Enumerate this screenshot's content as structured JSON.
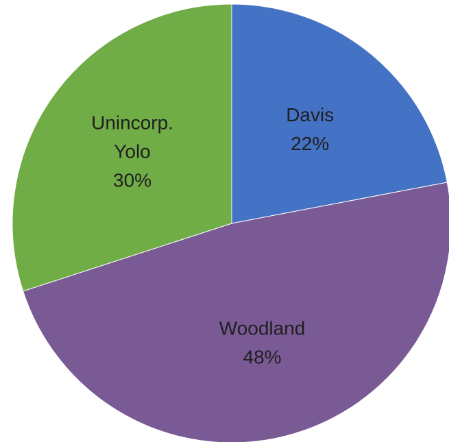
{
  "chart_data": {
    "type": "pie",
    "slices": [
      {
        "label_lines": [
          "Davis"
        ],
        "percent_label": "22%",
        "value": 22,
        "color": "#4472C4"
      },
      {
        "label_lines": [
          "Woodland"
        ],
        "percent_label": "48%",
        "value": 48,
        "color": "#7A5A94"
      },
      {
        "label_lines": [
          "Unincorp.",
          "Yolo"
        ],
        "percent_label": "30%",
        "value": 30,
        "color": "#70AD47"
      }
    ],
    "start_angle_deg": 0,
    "direction": "clockwise",
    "legend": "none",
    "data_labels": "inside"
  }
}
